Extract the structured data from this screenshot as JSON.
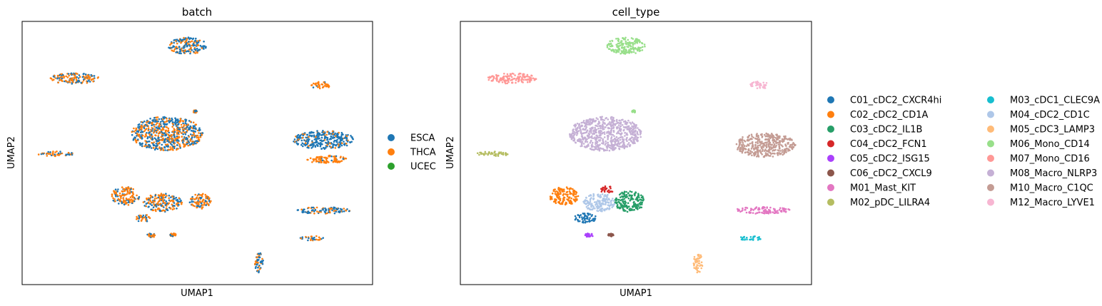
{
  "chart_data": [
    {
      "type": "scatter",
      "title": "batch",
      "xlabel": "UMAP1",
      "ylabel": "UMAP2",
      "xlim": [
        0,
        100
      ],
      "ylim": [
        0,
        100
      ],
      "grid": false,
      "ticks": "none",
      "legend": "right, outside",
      "series": [
        {
          "name": "ESCA",
          "color": "#1f77b4"
        },
        {
          "name": "THCA",
          "color": "#ff7f0e"
        },
        {
          "name": "UCEC",
          "color": "#2ca02c"
        }
      ],
      "clusters": [
        {
          "cx": 47.2,
          "cy": 90.7,
          "rx": 5.5,
          "ry": 3.2,
          "mix": [
            0.6,
            0.4
          ]
        },
        {
          "cx": 14.9,
          "cy": 78.3,
          "rx": 7.1,
          "ry": 2.0,
          "mix": [
            0.45,
            0.55
          ]
        },
        {
          "cx": 85.3,
          "cy": 75.8,
          "rx": 2.9,
          "ry": 1.4,
          "mix": [
            0.05,
            0.95
          ]
        },
        {
          "cx": 41.3,
          "cy": 57.3,
          "rx": 10.3,
          "ry": 6.5,
          "mix": [
            0.55,
            0.45
          ]
        },
        {
          "cx": 9.5,
          "cy": 49.7,
          "rx": 5.3,
          "ry": 0.9,
          "mix": [
            0.5,
            0.5
          ]
        },
        {
          "cx": 86.0,
          "cy": 55.0,
          "rx": 8.7,
          "ry": 3.5,
          "mix": [
            0.85,
            0.15
          ]
        },
        {
          "cx": 86.8,
          "cy": 47.6,
          "rx": 5.9,
          "ry": 1.5,
          "mix": [
            0.1,
            0.9
          ]
        },
        {
          "cx": 29.5,
          "cy": 33.6,
          "rx": 4.1,
          "ry": 3.5,
          "mix": [
            0.4,
            0.6
          ]
        },
        {
          "cx": 40.1,
          "cy": 31.2,
          "rx": 5.5,
          "ry": 3.5,
          "mix": [
            0.5,
            0.5
          ]
        },
        {
          "cx": 50.9,
          "cy": 31.6,
          "rx": 3.1,
          "ry": 3.0,
          "mix": [
            0.3,
            0.7
          ]
        },
        {
          "cx": 34.5,
          "cy": 25.3,
          "rx": 2.0,
          "ry": 1.6,
          "mix": [
            0.35,
            0.65
          ]
        },
        {
          "cx": 86.0,
          "cy": 28.2,
          "rx": 7.9,
          "ry": 1.3,
          "mix": [
            0.6,
            0.4
          ]
        },
        {
          "cx": 36.8,
          "cy": 18.7,
          "rx": 1.2,
          "ry": 0.8,
          "mix": [
            0.3,
            0.7
          ]
        },
        {
          "cx": 43.0,
          "cy": 18.9,
          "rx": 0.9,
          "ry": 0.6,
          "mix": [
            0.2,
            0.8
          ]
        },
        {
          "cx": 82.7,
          "cy": 17.6,
          "rx": 3.3,
          "ry": 0.9,
          "mix": [
            0.5,
            0.5
          ]
        },
        {
          "cx": 67.7,
          "cy": 8.3,
          "rx": 1.3,
          "ry": 3.8,
          "mix": [
            0.5,
            0.5
          ]
        },
        {
          "cx": 49.4,
          "cy": 65.8,
          "rx": 0.6,
          "ry": 0.5,
          "mix": [
            0.4,
            0.6
          ]
        }
      ]
    },
    {
      "type": "scatter",
      "title": "cell_type",
      "xlabel": "UMAP1",
      "ylabel": "UMAP2",
      "xlim": [
        0,
        100
      ],
      "ylim": [
        0,
        100
      ],
      "grid": false,
      "ticks": "none",
      "legend": "right, outside, 2 columns",
      "series": [
        {
          "name": "C01_cDC2_CXCR4hi",
          "color": "#1f77b4"
        },
        {
          "name": "C02_cDC2_CD1A",
          "color": "#ff7f0e"
        },
        {
          "name": "C03_cDC2_IL1B",
          "color": "#279e68"
        },
        {
          "name": "C04_cDC2_FCN1",
          "color": "#d62728"
        },
        {
          "name": "C05_cDC2_ISG15",
          "color": "#aa40fc"
        },
        {
          "name": "C06_cDC2_CXCL9",
          "color": "#8c564b"
        },
        {
          "name": "M01_Mast_KIT",
          "color": "#e377c2"
        },
        {
          "name": "M02_pDC_LILRA4",
          "color": "#b5bd61"
        },
        {
          "name": "M03_cDC1_CLEC9A",
          "color": "#17becf"
        },
        {
          "name": "M04_cDC2_CD1C",
          "color": "#aec7e8"
        },
        {
          "name": "M05_cDC3_LAMP3",
          "color": "#ffbb78"
        },
        {
          "name": "M06_Mono_CD14",
          "color": "#98df8a"
        },
        {
          "name": "M07_Mono_CD16",
          "color": "#ff9896"
        },
        {
          "name": "M08_Macro_NLRP3",
          "color": "#c5b0d5"
        },
        {
          "name": "M10_Macro_C1QC",
          "color": "#c49c94"
        },
        {
          "name": "M12_Macro_LYVE1",
          "color": "#f7b6d2"
        }
      ],
      "clusters": [
        {
          "label": "M06_Mono_CD14",
          "cx": 47.2,
          "cy": 90.7,
          "rx": 5.5,
          "ry": 3.2
        },
        {
          "label": "M07_Mono_CD16",
          "cx": 14.9,
          "cy": 78.3,
          "rx": 7.1,
          "ry": 2.0
        },
        {
          "label": "M12_Macro_LYVE1",
          "cx": 85.3,
          "cy": 75.8,
          "rx": 2.9,
          "ry": 1.4
        },
        {
          "label": "M08_Macro_NLRP3",
          "cx": 41.3,
          "cy": 57.3,
          "rx": 10.3,
          "ry": 6.5
        },
        {
          "label": "M02_pDC_LILRA4",
          "cx": 9.5,
          "cy": 49.7,
          "rx": 5.3,
          "ry": 0.9
        },
        {
          "label": "M10_Macro_C1QC",
          "cx": 86.8,
          "cy": 53.0,
          "rx": 8.7,
          "ry": 4.5
        },
        {
          "label": "C02_cDC2_CD1A",
          "cx": 29.5,
          "cy": 33.6,
          "rx": 4.1,
          "ry": 3.5
        },
        {
          "label": "M04_cDC2_CD1C",
          "cx": 39.5,
          "cy": 31.2,
          "rx": 4.5,
          "ry": 3.5
        },
        {
          "label": "C03_cDC2_IL1B",
          "cx": 48.2,
          "cy": 31.6,
          "rx": 4.3,
          "ry": 4.0
        },
        {
          "label": "C04_cDC2_FCN1",
          "cx": 41.8,
          "cy": 36.0,
          "rx": 1.8,
          "ry": 1.5
        },
        {
          "label": "C01_cDC2_CXCR4hi",
          "cx": 35.6,
          "cy": 25.3,
          "rx": 3.2,
          "ry": 1.8
        },
        {
          "label": "M01_Mast_KIT",
          "cx": 86.0,
          "cy": 28.2,
          "rx": 7.9,
          "ry": 1.3
        },
        {
          "label": "C05_cDC2_ISG15",
          "cx": 36.6,
          "cy": 18.7,
          "rx": 1.2,
          "ry": 0.8
        },
        {
          "label": "C06_cDC2_CXCL9",
          "cx": 43.0,
          "cy": 18.9,
          "rx": 0.9,
          "ry": 0.6
        },
        {
          "label": "M03_cDC1_CLEC9A",
          "cx": 82.7,
          "cy": 17.6,
          "rx": 3.3,
          "ry": 0.9
        },
        {
          "label": "M05_cDC3_LAMP3",
          "cx": 67.7,
          "cy": 8.3,
          "rx": 1.3,
          "ry": 3.8
        },
        {
          "label": "M06_Mono_CD14",
          "cx": 49.4,
          "cy": 65.8,
          "rx": 0.5,
          "ry": 0.5
        }
      ]
    }
  ]
}
